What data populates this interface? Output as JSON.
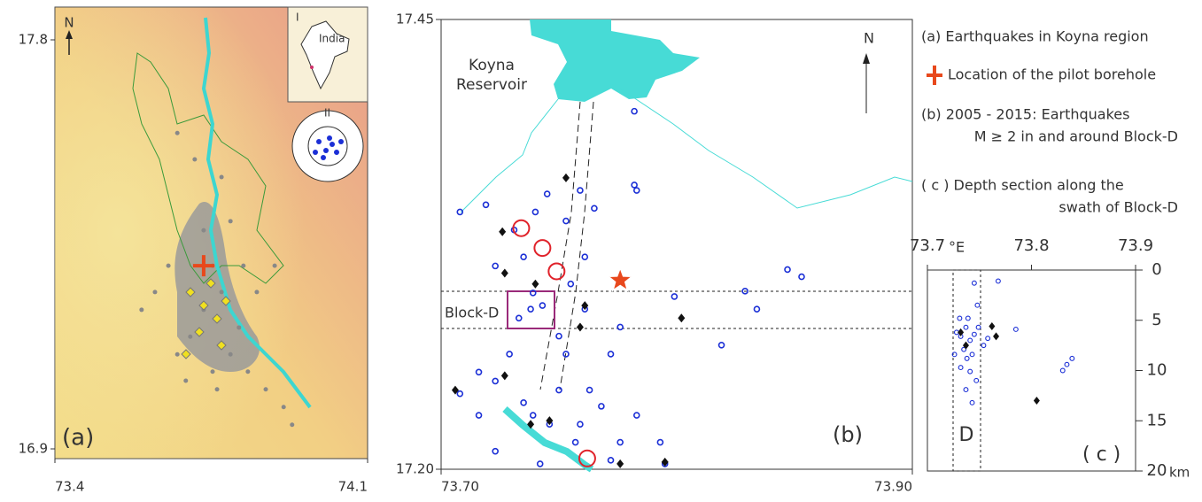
{
  "legend": [
    "(a) Earthquakes in Koyna region",
    "Location of the pilot borehole",
    "(b) 2005 - 2015: Earthquakes",
    "M ≥ 2 in and around Block-D",
    "( c ) Depth section along the",
    "swath of Block-D"
  ],
  "panel_a": {
    "label": "(a)",
    "north": "N",
    "inset_labels": [
      "I",
      "India",
      "II"
    ],
    "xlim": [
      73.4,
      74.1
    ],
    "ylim": [
      16.9,
      17.8
    ],
    "xticks": [
      73.4,
      74.1
    ],
    "yticks": [
      17.8,
      16.9
    ],
    "events": {
      "lon": [
        73.674,
        73.713,
        73.753,
        73.773,
        73.733,
        73.703,
        73.793,
        73.832,
        73.872,
        73.654,
        73.624,
        73.793,
        73.773,
        73.812,
        73.753,
        73.912,
        73.931,
        73.693,
        73.594,
        73.852,
        73.892,
        73.733,
        73.763,
        73.822,
        73.674
      ],
      "lat": [
        17.595,
        17.537,
        17.303,
        17.245,
        17.206,
        17.147,
        17.108,
        17.07,
        17.031,
        17.303,
        17.245,
        17.401,
        17.498,
        17.167,
        17.07,
        16.992,
        16.953,
        17.05,
        17.206,
        17.245,
        17.303,
        17.381,
        17.031,
        17.303,
        17.108
      ]
    },
    "borehole": {
      "lon": 73.733,
      "lat": 17.303
    }
  },
  "panel_b": {
    "label": "(b)",
    "north": "N",
    "reservoir": [
      "Koyna",
      "Reservoir"
    ],
    "block": "Block-D",
    "xlim": [
      73.7,
      73.9
    ],
    "ylim": [
      17.2,
      17.45
    ],
    "xticks": [
      {
        "value": 73.7,
        "label": "73.70"
      },
      {
        "value": 73.9,
        "label": "73.90"
      }
    ],
    "yticks": [
      17.45,
      {
        "value": 17.2,
        "label": "17.20"
      }
    ],
    "events": {
      "lon": [
        73.708,
        73.719,
        73.723,
        73.731,
        73.735,
        73.739,
        73.743,
        73.738,
        73.733,
        73.74,
        73.745,
        73.753,
        73.759,
        73.765,
        73.761,
        73.755,
        73.75,
        73.753,
        73.761,
        73.772,
        73.776,
        73.782,
        73.783,
        73.782,
        73.799,
        73.819,
        73.829,
        73.834,
        73.847,
        73.853,
        73.708,
        73.716,
        73.723,
        73.735,
        73.746,
        73.757,
        73.776,
        73.793,
        73.723,
        73.742,
        73.768,
        73.75,
        73.729,
        73.739,
        73.763,
        73.716,
        73.772,
        73.783,
        73.795,
        73.759
      ],
      "lat": [
        17.343,
        17.347,
        17.313,
        17.333,
        17.318,
        17.298,
        17.291,
        17.289,
        17.284,
        17.343,
        17.353,
        17.338,
        17.355,
        17.345,
        17.318,
        17.303,
        17.274,
        17.264,
        17.289,
        17.264,
        17.279,
        17.358,
        17.355,
        17.399,
        17.296,
        17.269,
        17.299,
        17.289,
        17.311,
        17.307,
        17.242,
        17.23,
        17.249,
        17.237,
        17.225,
        17.215,
        17.215,
        17.215,
        17.21,
        17.203,
        17.235,
        17.244,
        17.264,
        17.23,
        17.244,
        17.254,
        17.205,
        17.23,
        17.203,
        17.225
      ]
    },
    "mainshocks": {
      "lon": [
        73.726,
        73.727,
        73.74,
        73.753,
        73.761,
        73.759,
        73.802,
        73.706,
        73.727,
        73.746,
        73.776,
        73.795,
        73.738
      ],
      "lat": [
        17.332,
        17.309,
        17.303,
        17.362,
        17.291,
        17.279,
        17.284,
        17.244,
        17.252,
        17.227,
        17.203,
        17.204,
        17.225
      ]
    },
    "circles": {
      "lon": [
        73.734,
        73.743,
        73.749,
        73.762
      ],
      "lat": [
        17.334,
        17.323,
        17.31,
        17.206
      ]
    },
    "borehole": {
      "lon": 73.776,
      "lat": 17.305
    }
  },
  "panel_c": {
    "label": "( c )",
    "block": "D",
    "x_unit": "°E",
    "y_unit": "km",
    "xlim": [
      73.7,
      73.9
    ],
    "ylim": [
      0,
      20
    ],
    "xticks": [
      73.7,
      73.8,
      73.9
    ],
    "yticks": [
      0,
      5,
      10,
      15,
      20
    ],
    "events": {
      "lon": [
        73.728,
        73.732,
        73.737,
        73.741,
        73.745,
        73.735,
        73.738,
        73.743,
        73.732,
        73.741,
        73.747,
        73.737,
        73.749,
        73.754,
        73.745,
        73.768,
        73.785,
        73.834,
        73.839,
        73.83,
        73.731,
        73.743,
        73.748,
        73.739,
        73.726,
        73.758
      ],
      "depth": [
        6.2,
        6.6,
        5.7,
        7.0,
        6.4,
        7.9,
        8.8,
        8.4,
        9.7,
        10.1,
        11.0,
        11.9,
        5.7,
        7.5,
        1.3,
        1.1,
        5.9,
        9.4,
        8.8,
        10.0,
        4.8,
        13.2,
        3.5,
        4.8,
        8.4,
        6.8
      ]
    },
    "mainshocks": {
      "lon": [
        73.732,
        73.737,
        73.762,
        73.766,
        73.805
      ],
      "depth": [
        6.2,
        7.5,
        5.6,
        6.6,
        13.0
      ]
    }
  }
}
